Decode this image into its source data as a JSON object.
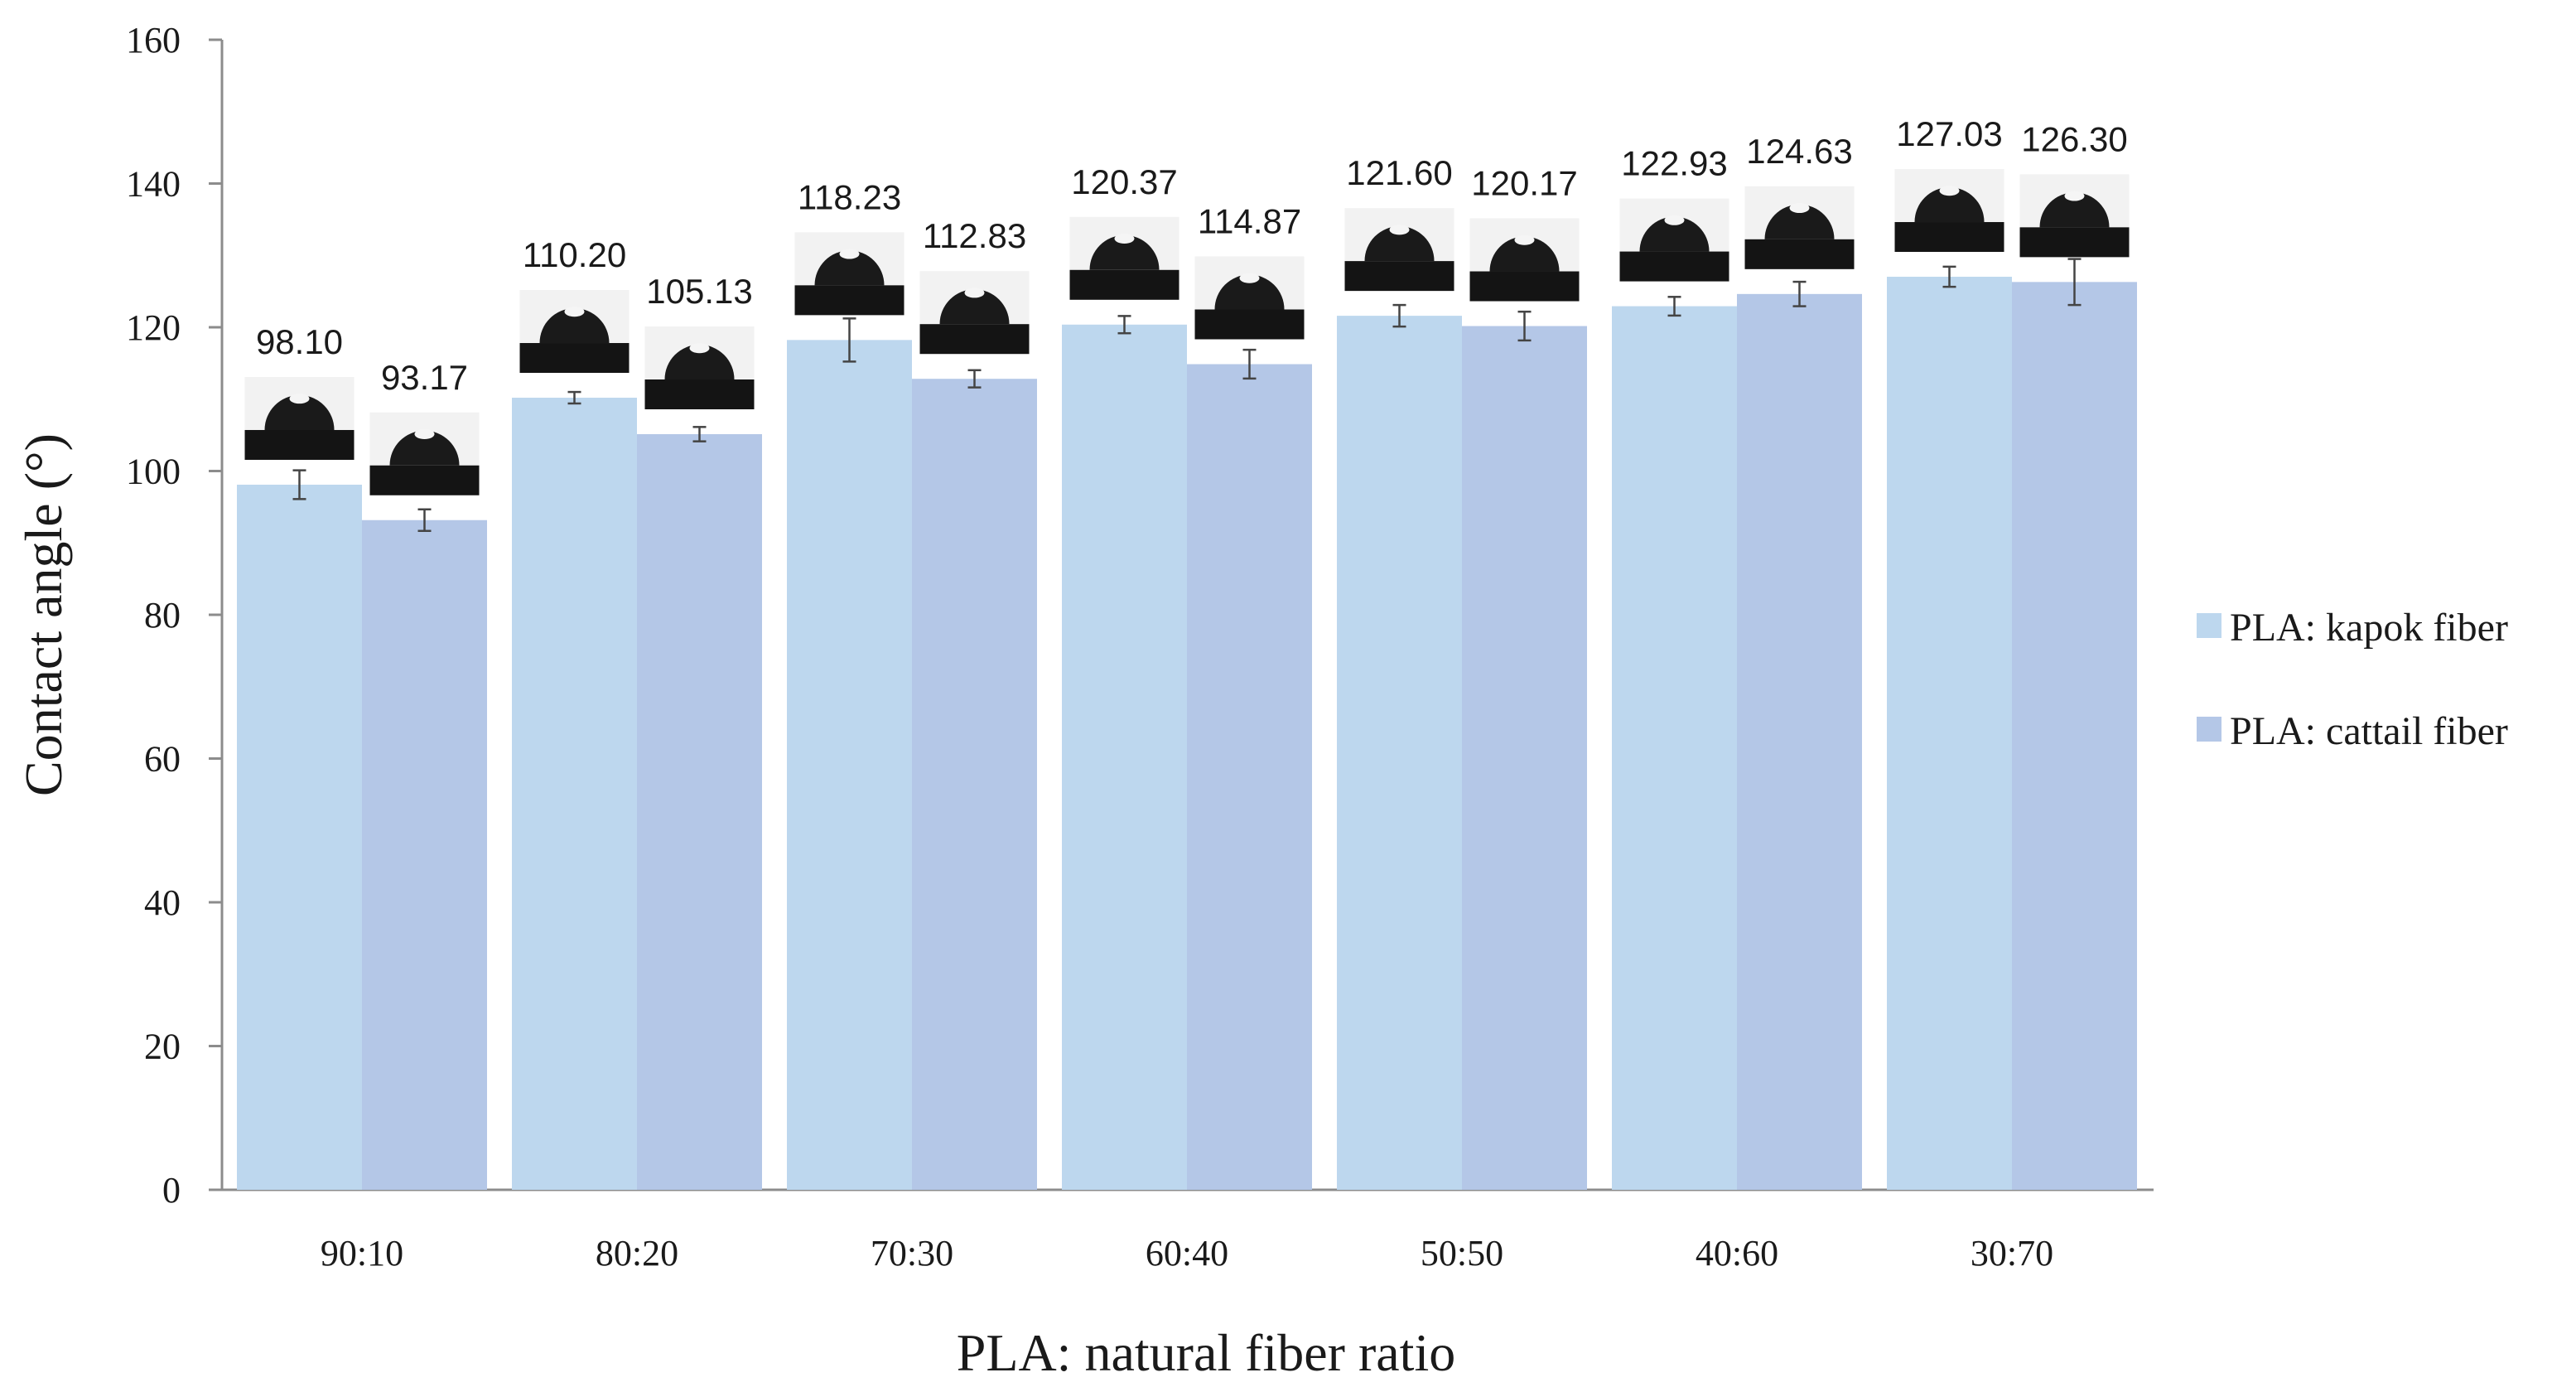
{
  "chart_data": {
    "type": "bar",
    "title": "",
    "xlabel": "PLA: natural fiber ratio",
    "ylabel": "Contact angle (°)",
    "ylim": [
      0,
      160
    ],
    "yticks": [
      0,
      20,
      40,
      60,
      80,
      100,
      120,
      140,
      160
    ],
    "categories": [
      "90:10",
      "80:20",
      "70:30",
      "60:40",
      "50:50",
      "40:60",
      "30:70"
    ],
    "series": [
      {
        "name": "PLA: kapok fiber",
        "color": "#bdd7ee",
        "values": [
          98.1,
          110.2,
          118.23,
          120.37,
          121.6,
          122.93,
          127.03
        ],
        "labels": [
          "98.10",
          "110.20",
          "118.23",
          "120.37",
          "121.60",
          "122.93",
          "127.03"
        ],
        "errors": [
          2.0,
          0.8,
          3.0,
          1.2,
          1.5,
          1.3,
          1.4
        ]
      },
      {
        "name": "PLA: cattail fiber",
        "color": "#b4c7e7",
        "values": [
          93.17,
          105.13,
          112.83,
          114.87,
          120.17,
          124.63,
          126.3
        ],
        "labels": [
          "93.17",
          "105.13",
          "112.83",
          "114.87",
          "120.17",
          "124.63",
          "126.30"
        ],
        "errors": [
          1.5,
          1.0,
          1.2,
          2.0,
          2.0,
          1.7,
          3.2
        ]
      }
    ],
    "legend_position": "right",
    "grid": false,
    "annotations": "droplet contact-angle photographs above each bar"
  }
}
